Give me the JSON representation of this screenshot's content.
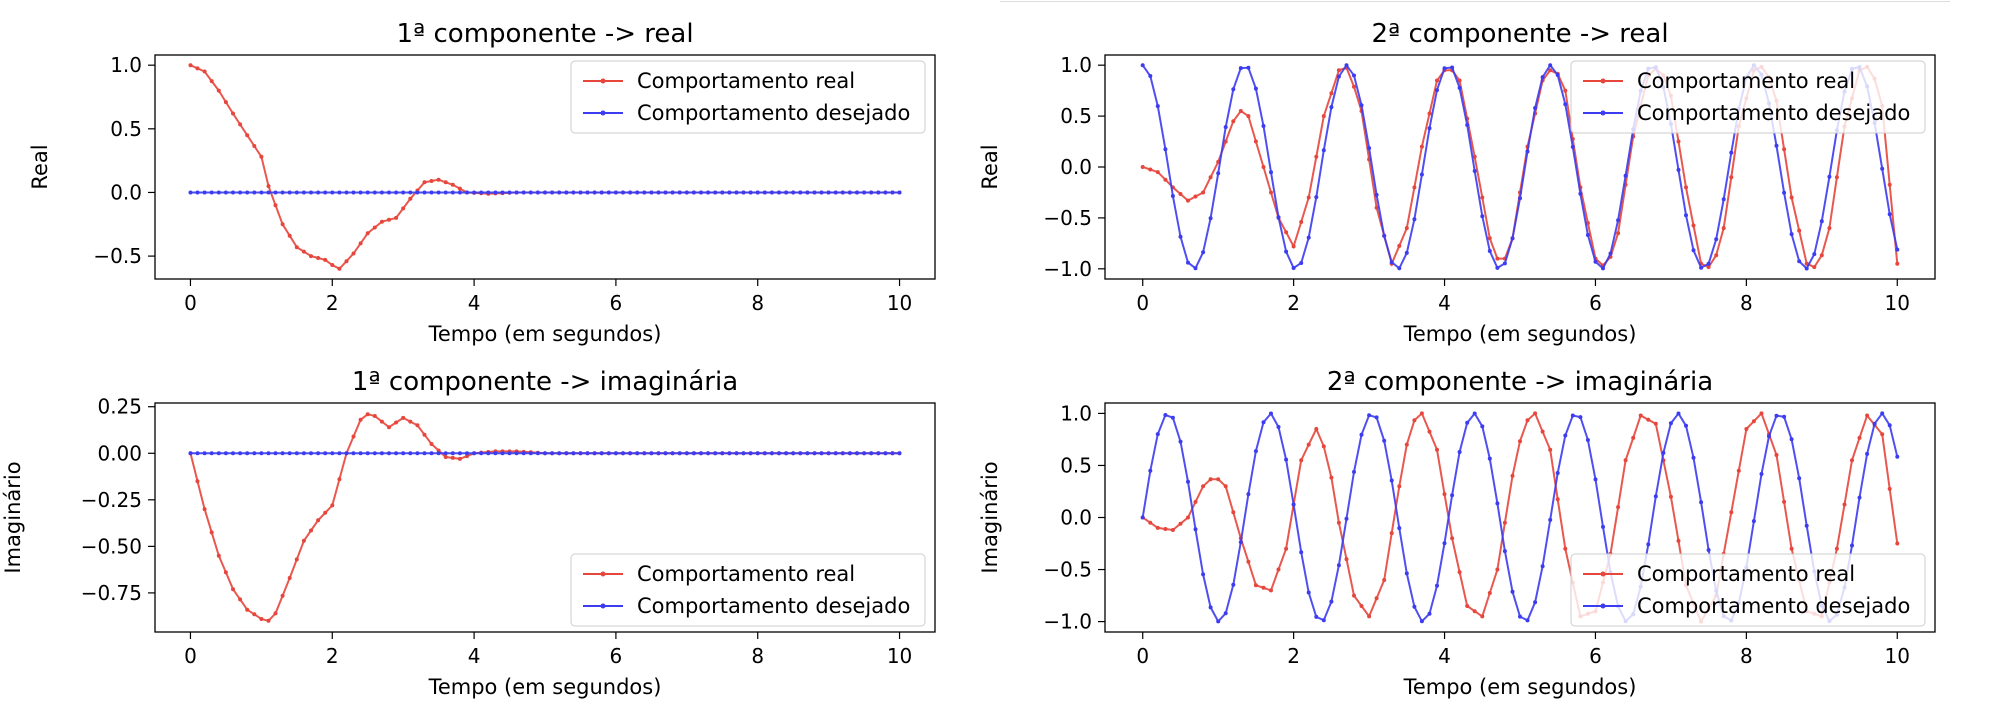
{
  "colors": {
    "real": "#e6463c",
    "desired": "#3c3cf0"
  },
  "chart_data": [
    {
      "type": "line",
      "title": "1ª componente -> real",
      "xlabel": "Tempo (em segundos)",
      "ylabel": "Real",
      "xlim": [
        -0.5,
        10.5
      ],
      "ylim": [
        -0.68,
        1.08
      ],
      "xticks": [
        0,
        2,
        4,
        6,
        8,
        10
      ],
      "xtick_labels": [
        "0",
        "2",
        "4",
        "6",
        "8",
        "10"
      ],
      "yticks": [
        -0.5,
        0.0,
        0.5,
        1.0
      ],
      "ytick_labels": [
        "−0.5",
        "0.0",
        "0.5",
        "1.0"
      ],
      "legend_position": "upper right",
      "series": [
        {
          "name": "Comportamento real",
          "x": [
            0,
            0.2,
            0.4,
            0.6,
            0.8,
            1.0,
            1.1,
            1.3,
            1.5,
            1.7,
            1.9,
            2.0,
            2.1,
            2.3,
            2.5,
            2.7,
            2.9,
            3.1,
            3.3,
            3.5,
            3.7,
            3.9,
            4.2,
            4.6,
            5.0,
            10.0
          ],
          "y": [
            1.0,
            0.95,
            0.8,
            0.62,
            0.45,
            0.28,
            0.05,
            -0.25,
            -0.43,
            -0.5,
            -0.53,
            -0.57,
            -0.6,
            -0.48,
            -0.32,
            -0.23,
            -0.2,
            -0.05,
            0.08,
            0.1,
            0.06,
            0.0,
            -0.01,
            0.0,
            0.0,
            0.0
          ]
        },
        {
          "name": "Comportamento desejado",
          "x": [
            0,
            10
          ],
          "y": [
            0.0,
            0.0
          ]
        }
      ]
    },
    {
      "type": "line",
      "title": "2ª componente -> real",
      "xlabel": "Tempo (em segundos)",
      "ylabel": "Real",
      "xlim": [
        -0.5,
        10.5
      ],
      "ylim": [
        -1.1,
        1.1
      ],
      "xticks": [
        0,
        2,
        4,
        6,
        8,
        10
      ],
      "xtick_labels": [
        "0",
        "2",
        "4",
        "6",
        "8",
        "10"
      ],
      "yticks": [
        -1.0,
        -0.5,
        0.0,
        0.5,
        1.0
      ],
      "ytick_labels": [
        "−1.0",
        "−0.5",
        "0.0",
        "0.5",
        "1.0"
      ],
      "legend_position": "upper right",
      "series": [
        {
          "name": "Comportamento real",
          "x": [
            0,
            0.2,
            0.4,
            0.6,
            0.8,
            1.0,
            1.2,
            1.3,
            1.4,
            1.6,
            1.8,
            2.0,
            2.2,
            2.4,
            2.6,
            2.72,
            2.9,
            3.1,
            3.3,
            3.5,
            3.7,
            3.9,
            4.05,
            4.2,
            4.4,
            4.6,
            4.75,
            4.9,
            5.1,
            5.3,
            5.45,
            5.6,
            5.8,
            6.0,
            6.15,
            6.3,
            6.5,
            6.7,
            6.85,
            7.0,
            7.2,
            7.4,
            7.55,
            7.7,
            7.9,
            8.1,
            8.25,
            8.4,
            8.6,
            8.8,
            8.95,
            9.1,
            9.3,
            9.5,
            9.65,
            9.8,
            10.0
          ],
          "y": [
            0.0,
            -0.05,
            -0.2,
            -0.33,
            -0.25,
            0.05,
            0.45,
            0.55,
            0.5,
            0.0,
            -0.5,
            -0.78,
            -0.3,
            0.5,
            0.95,
            0.98,
            0.55,
            -0.4,
            -0.95,
            -0.6,
            0.2,
            0.85,
            1.0,
            0.85,
            0.1,
            -0.7,
            -1.0,
            -0.7,
            0.2,
            0.85,
            1.0,
            0.75,
            -0.2,
            -0.9,
            -1.0,
            -0.65,
            0.3,
            0.9,
            1.0,
            0.7,
            -0.2,
            -0.95,
            -1.0,
            -0.6,
            0.4,
            0.95,
            1.0,
            0.65,
            -0.3,
            -0.95,
            -1.0,
            -0.6,
            0.4,
            0.95,
            1.0,
            0.6,
            -0.95
          ]
        },
        {
          "name": "Comportamento desejado",
          "func": "cos",
          "omega": 4.65,
          "x_start": 0,
          "x_end": 10,
          "n_points": 101
        }
      ]
    },
    {
      "type": "line",
      "title": "1ª componente -> imaginária",
      "xlabel": "Tempo (em segundos)",
      "ylabel": "Imaginário",
      "xlim": [
        -0.5,
        10.5
      ],
      "ylim": [
        -0.96,
        0.27
      ],
      "xticks": [
        0,
        2,
        4,
        6,
        8,
        10
      ],
      "xtick_labels": [
        "0",
        "2",
        "4",
        "6",
        "8",
        "10"
      ],
      "yticks": [
        -0.75,
        -0.5,
        -0.25,
        0.0,
        0.25
      ],
      "ytick_labels": [
        "−0.75",
        "−0.50",
        "−0.25",
        "0.00",
        "0.25"
      ],
      "legend_position": "lower right",
      "series": [
        {
          "name": "Comportamento real",
          "x": [
            0,
            0.2,
            0.4,
            0.6,
            0.8,
            1.0,
            1.1,
            1.2,
            1.4,
            1.6,
            1.8,
            2.0,
            2.2,
            2.4,
            2.5,
            2.6,
            2.8,
            3.0,
            3.2,
            3.4,
            3.6,
            3.8,
            4.0,
            4.3,
            4.6,
            5.0,
            10.0
          ],
          "y": [
            0.0,
            -0.3,
            -0.55,
            -0.73,
            -0.84,
            -0.89,
            -0.9,
            -0.86,
            -0.67,
            -0.47,
            -0.36,
            -0.28,
            0.0,
            0.18,
            0.21,
            0.2,
            0.14,
            0.19,
            0.15,
            0.05,
            -0.02,
            -0.03,
            0.0,
            0.01,
            0.01,
            0.0,
            0.0
          ]
        },
        {
          "name": "Comportamento desejado",
          "x": [
            0,
            10
          ],
          "y": [
            0.0,
            0.0
          ]
        }
      ]
    },
    {
      "type": "line",
      "title": "2ª componente -> imaginária",
      "xlabel": "Tempo (em segundos)",
      "ylabel": "Imaginário",
      "xlim": [
        -0.5,
        10.5
      ],
      "ylim": [
        -1.1,
        1.1
      ],
      "xticks": [
        0,
        2,
        4,
        6,
        8,
        10
      ],
      "xtick_labels": [
        "0",
        "2",
        "4",
        "6",
        "8",
        "10"
      ],
      "yticks": [
        -1.0,
        -0.5,
        0.0,
        0.5,
        1.0
      ],
      "ytick_labels": [
        "−1.0",
        "−0.5",
        "0.0",
        "0.5",
        "1.0"
      ],
      "legend_position": "lower right",
      "series": [
        {
          "name": "Comportamento real",
          "x": [
            0,
            0.2,
            0.4,
            0.6,
            0.8,
            0.95,
            1.1,
            1.3,
            1.5,
            1.7,
            1.9,
            2.1,
            2.3,
            2.45,
            2.6,
            2.8,
            3.0,
            3.2,
            3.4,
            3.55,
            3.7,
            3.9,
            4.1,
            4.3,
            4.5,
            4.7,
            4.9,
            5.05,
            5.2,
            5.4,
            5.6,
            5.8,
            6.0,
            6.2,
            6.4,
            6.6,
            6.8,
            7.0,
            7.2,
            7.4,
            7.6,
            7.8,
            8.0,
            8.2,
            8.4,
            8.6,
            8.8,
            9.0,
            9.2,
            9.4,
            9.6,
            9.8,
            10.0
          ],
          "y": [
            0.0,
            -0.1,
            -0.12,
            0.0,
            0.3,
            0.4,
            0.3,
            -0.2,
            -0.65,
            -0.7,
            -0.3,
            0.55,
            0.85,
            0.6,
            -0.05,
            -0.75,
            -0.95,
            -0.6,
            0.3,
            0.9,
            1.0,
            0.65,
            -0.2,
            -0.85,
            -0.95,
            -0.5,
            0.4,
            0.9,
            1.0,
            0.65,
            -0.3,
            -0.95,
            -0.9,
            -0.35,
            0.55,
            0.98,
            0.9,
            0.2,
            -0.65,
            -1.0,
            -0.75,
            0.05,
            0.85,
            1.0,
            0.6,
            -0.3,
            -0.9,
            -0.95,
            -0.3,
            0.55,
            0.98,
            0.8,
            -0.25
          ]
        },
        {
          "name": "Comportamento desejado",
          "func": "sin",
          "omega": 4.65,
          "x_start": 0,
          "x_end": 10,
          "n_points": 101
        }
      ]
    }
  ]
}
